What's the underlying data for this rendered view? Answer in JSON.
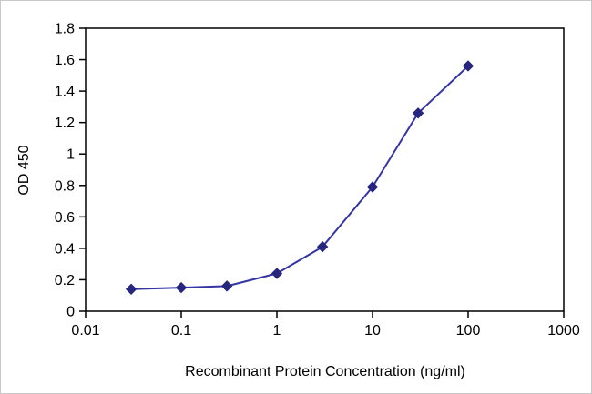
{
  "chart_data": {
    "type": "line",
    "title": "",
    "xlabel": "Recombinant Protein Concentration (ng/ml)",
    "ylabel": "OD 450",
    "x_scale": "log",
    "xlim": [
      0.01,
      1000
    ],
    "ylim": [
      0,
      1.8
    ],
    "x": [
      0.03,
      0.1,
      0.3,
      1,
      3,
      10,
      30,
      100
    ],
    "y": [
      0.14,
      0.15,
      0.16,
      0.24,
      0.41,
      0.79,
      1.26,
      1.56
    ],
    "x_ticks": [
      0.01,
      0.1,
      1,
      10,
      100,
      1000
    ],
    "x_tick_labels": [
      "0.01",
      "0.1",
      "1",
      "10",
      "100",
      "1000"
    ],
    "y_ticks": [
      0,
      0.2,
      0.4,
      0.6,
      0.8,
      1,
      1.2,
      1.4,
      1.6,
      1.8
    ],
    "y_tick_labels": [
      "0",
      "0.2",
      "0.4",
      "0.6",
      "0.8",
      "1",
      "1.2",
      "1.4",
      "1.6",
      "1.8"
    ],
    "grid": false,
    "legend": "none",
    "series_name": "OD 450 vs concentration",
    "line_color": "#3434a4",
    "marker": "diamond",
    "marker_color": "#26267e",
    "axis_color": "#000000",
    "background_color": "#ffffff"
  }
}
